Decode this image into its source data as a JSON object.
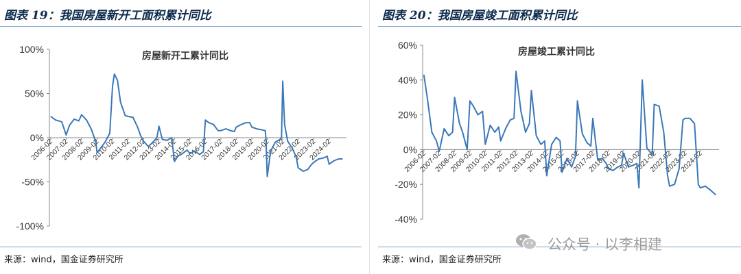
{
  "figures": [
    {
      "title": "图表 19：我国房屋新开工面积累计同比",
      "source": "来源：wind，国金证券研究所"
    },
    {
      "title": "图表 20：我国房屋竣工面积累计同比",
      "source": "来源：wind，国金证券研究所"
    }
  ],
  "watermark": {
    "text": "公众号 · 以李相建",
    "icon": "wechat-icon"
  },
  "chart_data": [
    {
      "type": "line",
      "title": "房屋新开工累计同比",
      "ylim": [
        -100,
        100
      ],
      "yticks": [
        100,
        50,
        0,
        -50,
        -100
      ],
      "ytick_labels": [
        "100%",
        "50%",
        "0%",
        "-50%",
        "-100%"
      ],
      "xlim": [
        2006.0,
        2025.2
      ],
      "xticks": [
        2006.083,
        2007.083,
        2008.083,
        2009.083,
        2010.083,
        2011.083,
        2012.083,
        2013.083,
        2014.083,
        2015.083,
        2016.083,
        2017.083,
        2018.083,
        2019.083,
        2020.083,
        2021.083,
        2022.083,
        2023.083,
        2024.083
      ],
      "xtick_labels": [
        "2006-02",
        "2007-02",
        "2008-02",
        "2009-02",
        "2010-02",
        "2011-02",
        "2012-02",
        "2013-02",
        "2014-02",
        "2015-02",
        "2016-02",
        "2017-02",
        "2018-02",
        "2019-02",
        "2020-02",
        "2021-02",
        "2022-02",
        "2023-02",
        "2024-02"
      ],
      "color": "#3a78b8",
      "series": [
        {
          "x": [
            2006.08,
            2006.4,
            2006.8,
            2007.08,
            2007.3,
            2007.6,
            2007.9,
            2008.08,
            2008.4,
            2008.7,
            2009.0,
            2009.08,
            2009.3,
            2009.6,
            2009.9,
            2010.08,
            2010.2,
            2010.4,
            2010.6,
            2010.9,
            2011.08,
            2011.4,
            2011.7,
            2011.9,
            2012.08,
            2012.4,
            2012.7,
            2012.95,
            2013.08,
            2013.3,
            2013.6,
            2013.9,
            2014.08,
            2014.3,
            2014.6,
            2014.9,
            2015.08,
            2015.4,
            2015.7,
            2015.95,
            2016.08,
            2016.3,
            2016.6,
            2016.9,
            2017.08,
            2017.4,
            2017.7,
            2017.95,
            2018.08,
            2018.4,
            2018.7,
            2018.95,
            2019.08,
            2019.4,
            2019.7,
            2019.95,
            2020.0,
            2020.08,
            2020.3,
            2020.6,
            2020.9,
            2021.0,
            2021.08,
            2021.2,
            2021.4,
            2021.7,
            2021.95,
            2022.08,
            2022.4,
            2022.7,
            2022.95,
            2023.08,
            2023.4,
            2023.7,
            2023.95,
            2024.08,
            2024.4,
            2024.7,
            2024.95
          ],
          "y": [
            24,
            20,
            18,
            3,
            14,
            21,
            19,
            26,
            20,
            10,
            -5,
            -17,
            -12,
            -5,
            5,
            58,
            72,
            65,
            40,
            25,
            24,
            23,
            12,
            2,
            -4,
            -10,
            -5,
            0,
            13,
            -2,
            -3,
            0,
            -27,
            -21,
            -18,
            -14,
            -18,
            -15,
            -19,
            -16,
            20,
            17,
            15,
            8,
            8,
            10,
            8,
            7,
            12,
            15,
            17,
            17,
            12,
            10,
            9,
            8,
            -2,
            -44,
            -15,
            -5,
            -2,
            0,
            64,
            15,
            -4,
            -12,
            -22,
            -34,
            -38,
            -36,
            -30,
            -28,
            -24,
            -23,
            -21,
            -30,
            -26,
            -24,
            -24
          ]
        }
      ]
    },
    {
      "type": "line",
      "title": "房屋竣工累计同比",
      "ylim": [
        -40,
        60
      ],
      "yticks": [
        60,
        40,
        20,
        0,
        -20,
        -40
      ],
      "ytick_labels": [
        "60%",
        "40%",
        "20%",
        "0%",
        "-20%",
        "-40%"
      ],
      "xlim": [
        2006.0,
        2025.3
      ],
      "xticks": [
        2006.083,
        2007.083,
        2008.083,
        2009.083,
        2010.083,
        2011.083,
        2012.083,
        2013.083,
        2014.083,
        2015.083,
        2016.083,
        2017.083,
        2018.083,
        2019.083,
        2020.083,
        2021.083,
        2022.083,
        2023.083,
        2024.083
      ],
      "xtick_labels": [
        "2006-02",
        "2007-02",
        "2008-02",
        "2009-02",
        "2010-02",
        "2011-02",
        "2012-02",
        "2013-02",
        "2014-02",
        "2015-02",
        "2016-02",
        "2017-02",
        "2018-02",
        "2019-02",
        "2020-02",
        "2021-02",
        "2022-02",
        "2023-02",
        "2024-02"
      ],
      "color": "#3a78b8",
      "series": [
        {
          "x": [
            2006.08,
            2006.3,
            2006.6,
            2006.9,
            2007.08,
            2007.4,
            2007.7,
            2007.95,
            2008.08,
            2008.4,
            2008.6,
            2008.9,
            2009.08,
            2009.3,
            2009.6,
            2009.9,
            2010.08,
            2010.4,
            2010.7,
            2010.95,
            2011.08,
            2011.4,
            2011.7,
            2011.95,
            2012.08,
            2012.4,
            2012.7,
            2012.95,
            2013.08,
            2013.4,
            2013.7,
            2013.95,
            2014.08,
            2014.4,
            2014.7,
            2014.95,
            2015.08,
            2015.4,
            2015.7,
            2015.95,
            2016.08,
            2016.4,
            2016.7,
            2016.95,
            2017.08,
            2017.4,
            2017.7,
            2017.95,
            2018.08,
            2018.4,
            2018.7,
            2018.95,
            2019.08,
            2019.4,
            2019.7,
            2019.95,
            2020.08,
            2020.3,
            2020.6,
            2020.95,
            2021.08,
            2021.4,
            2021.7,
            2021.95,
            2022.08,
            2022.4,
            2022.7,
            2022.95,
            2023.08,
            2023.4,
            2023.7,
            2023.95,
            2024.08,
            2024.4,
            2024.7,
            2024.95,
            2025.1
          ],
          "y": [
            43,
            30,
            10,
            5,
            -1,
            12,
            8,
            10,
            30,
            15,
            10,
            0,
            28,
            25,
            20,
            22,
            3,
            14,
            10,
            13,
            5,
            12,
            17,
            18,
            45,
            22,
            10,
            15,
            34,
            8,
            3,
            5,
            -15,
            3,
            7,
            5,
            -13,
            -5,
            -10,
            -4,
            28,
            9,
            4,
            2,
            18,
            -6,
            -5,
            -8,
            -11,
            -12,
            -10,
            -9,
            -2,
            -10,
            -9,
            -8,
            -22,
            40,
            1,
            -3,
            26,
            25,
            10,
            -15,
            -21,
            -20,
            -11,
            17,
            18,
            18,
            15,
            -20,
            -22,
            -21,
            -23,
            -25,
            -26
          ]
        }
      ]
    }
  ]
}
